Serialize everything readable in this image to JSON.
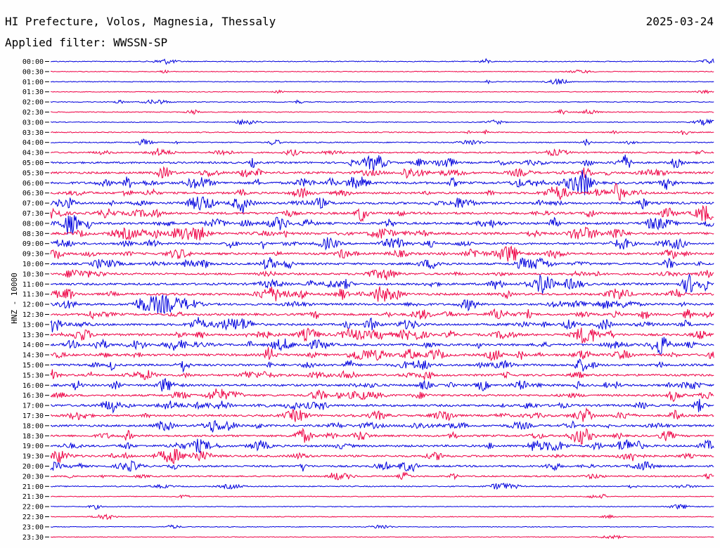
{
  "header": {
    "title": "HI Prefecture, Volos, Magnesia, Thessaly",
    "date": "2025-03-24",
    "filter": "Applied filter: WWSSN-SP"
  },
  "colors": {
    "blue": "#0000dd",
    "red": "#ee0044"
  },
  "chart_data": {
    "type": "line",
    "title": "HI Prefecture, Volos, Magnesia, Thessaly",
    "ylabel": "HNZ - 10000",
    "rows": [
      {
        "label": "00:00",
        "color": "blue",
        "activity": 0.15
      },
      {
        "label": "00:30",
        "color": "red",
        "activity": 0.08
      },
      {
        "label": "01:00",
        "color": "blue",
        "activity": 0.1
      },
      {
        "label": "01:30",
        "color": "red",
        "activity": 0.08
      },
      {
        "label": "02:00",
        "color": "blue",
        "activity": 0.15
      },
      {
        "label": "02:30",
        "color": "red",
        "activity": 0.15
      },
      {
        "label": "03:00",
        "color": "blue",
        "activity": 0.12
      },
      {
        "label": "03:30",
        "color": "red",
        "activity": 0.2
      },
      {
        "label": "04:00",
        "color": "blue",
        "activity": 0.25
      },
      {
        "label": "04:30",
        "color": "red",
        "activity": 0.4
      },
      {
        "label": "05:00",
        "color": "blue",
        "activity": 0.6
      },
      {
        "label": "05:30",
        "color": "red",
        "activity": 0.7
      },
      {
        "label": "06:00",
        "color": "blue",
        "activity": 0.85
      },
      {
        "label": "06:30",
        "color": "red",
        "activity": 0.7
      },
      {
        "label": "07:00",
        "color": "blue",
        "activity": 0.8
      },
      {
        "label": "07:30",
        "color": "red",
        "activity": 0.8
      },
      {
        "label": "08:00",
        "color": "blue",
        "activity": 0.8
      },
      {
        "label": "08:30",
        "color": "red",
        "activity": 0.85
      },
      {
        "label": "09:00",
        "color": "blue",
        "activity": 0.7
      },
      {
        "label": "09:30",
        "color": "red",
        "activity": 0.75
      },
      {
        "label": "10:00",
        "color": "blue",
        "activity": 0.7
      },
      {
        "label": "10:30",
        "color": "red",
        "activity": 0.65
      },
      {
        "label": "11:00",
        "color": "blue",
        "activity": 0.75
      },
      {
        "label": "11:30",
        "color": "red",
        "activity": 0.8
      },
      {
        "label": "12:00",
        "color": "blue",
        "activity": 0.7
      },
      {
        "label": "12:30",
        "color": "red",
        "activity": 0.75
      },
      {
        "label": "13:00",
        "color": "blue",
        "activity": 0.75
      },
      {
        "label": "13:30",
        "color": "red",
        "activity": 0.8
      },
      {
        "label": "14:00",
        "color": "blue",
        "activity": 0.75
      },
      {
        "label": "14:30",
        "color": "red",
        "activity": 0.8
      },
      {
        "label": "15:00",
        "color": "blue",
        "activity": 0.75
      },
      {
        "label": "15:30",
        "color": "red",
        "activity": 0.7
      },
      {
        "label": "16:00",
        "color": "blue",
        "activity": 0.75
      },
      {
        "label": "16:30",
        "color": "red",
        "activity": 0.7
      },
      {
        "label": "17:00",
        "color": "blue",
        "activity": 0.75
      },
      {
        "label": "17:30",
        "color": "red",
        "activity": 0.65
      },
      {
        "label": "18:00",
        "color": "blue",
        "activity": 0.7
      },
      {
        "label": "18:30",
        "color": "red",
        "activity": 0.65
      },
      {
        "label": "19:00",
        "color": "blue",
        "activity": 0.7
      },
      {
        "label": "19:30",
        "color": "red",
        "activity": 0.65
      },
      {
        "label": "20:00",
        "color": "blue",
        "activity": 0.6
      },
      {
        "label": "20:30",
        "color": "red",
        "activity": 0.4
      },
      {
        "label": "21:00",
        "color": "blue",
        "activity": 0.25
      },
      {
        "label": "21:30",
        "color": "red",
        "activity": 0.12
      },
      {
        "label": "22:00",
        "color": "blue",
        "activity": 0.1
      },
      {
        "label": "22:30",
        "color": "red",
        "activity": 0.08
      },
      {
        "label": "23:00",
        "color": "blue",
        "activity": 0.08
      },
      {
        "label": "23:30",
        "color": "red",
        "activity": 0.06
      }
    ]
  }
}
